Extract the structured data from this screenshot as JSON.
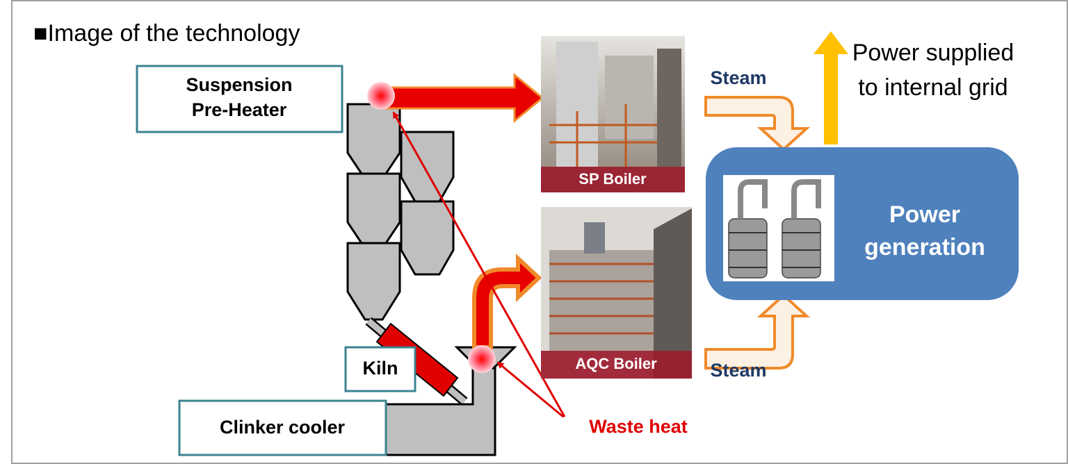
{
  "title": "■Image of the technology",
  "nodes": [
    {
      "label": [
        "Suspension",
        "Pre-Heater"
      ]
    },
    {
      "label": [
        "Kiln"
      ]
    },
    {
      "label": [
        "Clinker cooler"
      ]
    },
    {
      "label": [
        "SP Boiler"
      ]
    },
    {
      "label": [
        "AQC Boiler"
      ]
    },
    {
      "label": [
        "Power",
        "generation"
      ]
    }
  ],
  "annotations": {
    "steam_top": "Steam",
    "steam_bottom": "Steam",
    "power_supplied": [
      "Power supplied",
      "to internal grid"
    ],
    "waste_heat": "Waste heat"
  }
}
